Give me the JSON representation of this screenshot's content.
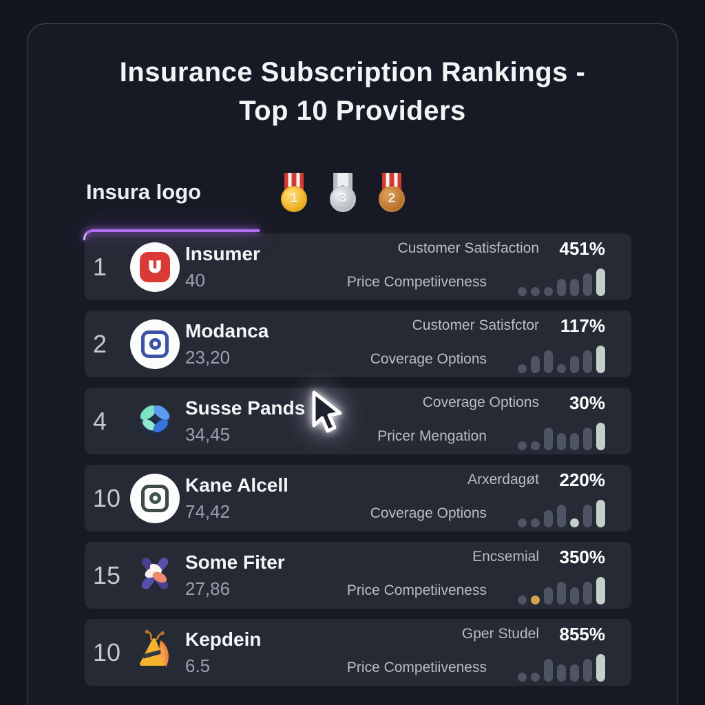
{
  "title": {
    "line1": "Insurance Subscription Rankings -",
    "line2": "Top 10 Providers"
  },
  "header": {
    "brand": "Insura logo",
    "medals": [
      {
        "rank": "1",
        "metal": "gold",
        "ribbon": "striped"
      },
      {
        "rank": "3",
        "metal": "silver",
        "ribbon": "silver"
      },
      {
        "rank": "2",
        "metal": "bronze",
        "ribbon": "striped"
      }
    ]
  },
  "colors": {
    "accent_line": "#b26ef0",
    "card_bg": "#262a34",
    "bar_grey": "#4e5463",
    "bar_light": "#c4cfcc",
    "bar_orange": "#d7a04e"
  },
  "rows": [
    {
      "rank": "1",
      "logo": "insumer-logo",
      "name": "Insumer",
      "score": "40",
      "metric1": {
        "label": "Customer Satisfaction",
        "value": "451%"
      },
      "metric2": {
        "label": "Price Competiiveness"
      },
      "bars": [
        {
          "h": 1,
          "c": "grey"
        },
        {
          "h": 1,
          "c": "grey"
        },
        {
          "h": 1,
          "c": "grey"
        },
        {
          "h": 2,
          "c": "grey"
        },
        {
          "h": 2,
          "c": "grey"
        },
        {
          "h": 3,
          "c": "grey"
        },
        {
          "h": 4,
          "c": "light"
        }
      ]
    },
    {
      "rank": "2",
      "logo": "modanca-logo",
      "name": "Modanca",
      "score": "23,20",
      "metric1": {
        "label": "Customer Satisfctor",
        "value": "117%"
      },
      "metric2": {
        "label": "Coverage Options"
      },
      "bars": [
        {
          "h": 1,
          "c": "grey"
        },
        {
          "h": 2,
          "c": "grey"
        },
        {
          "h": 3,
          "c": "grey"
        },
        {
          "h": 1,
          "c": "grey"
        },
        {
          "h": 2,
          "c": "grey"
        },
        {
          "h": 3,
          "c": "grey"
        },
        {
          "h": 4,
          "c": "light"
        }
      ]
    },
    {
      "rank": "4",
      "logo": "susse-pands-logo",
      "name": "Susse Pands",
      "score": "34,45",
      "metric1": {
        "label": "Coverage Options",
        "value": "30%"
      },
      "metric2": {
        "label": "Pricer Mengation"
      },
      "bars": [
        {
          "h": 1,
          "c": "grey"
        },
        {
          "h": 1,
          "c": "grey"
        },
        {
          "h": 3,
          "c": "grey"
        },
        {
          "h": 2,
          "c": "grey"
        },
        {
          "h": 2,
          "c": "grey"
        },
        {
          "h": 3,
          "c": "grey"
        },
        {
          "h": 4,
          "c": "light"
        }
      ]
    },
    {
      "rank": "10",
      "logo": "kane-alcell-logo",
      "name": "Kane Alcell",
      "score": "74,42",
      "metric1": {
        "label": "Arxerdagøt",
        "value": "220%"
      },
      "metric2": {
        "label": "Coverage Options"
      },
      "bars": [
        {
          "h": 1,
          "c": "grey"
        },
        {
          "h": 1,
          "c": "grey"
        },
        {
          "h": 2,
          "c": "grey"
        },
        {
          "h": 3,
          "c": "grey"
        },
        {
          "h": 1,
          "c": "light"
        },
        {
          "h": 3,
          "c": "grey"
        },
        {
          "h": 4,
          "c": "light"
        }
      ]
    },
    {
      "rank": "15",
      "logo": "some-fiter-logo",
      "name": "Some Fiter",
      "score": "27,86",
      "metric1": {
        "label": "Encsemial",
        "value": "350%"
      },
      "metric2": {
        "label": "Price Competiiveness"
      },
      "bars": [
        {
          "h": 1,
          "c": "grey"
        },
        {
          "h": 1,
          "c": "orange"
        },
        {
          "h": 2,
          "c": "grey"
        },
        {
          "h": 3,
          "c": "grey"
        },
        {
          "h": 2,
          "c": "grey"
        },
        {
          "h": 3,
          "c": "grey"
        },
        {
          "h": 4,
          "c": "light"
        }
      ]
    },
    {
      "rank": "10",
      "logo": "kepdein-logo",
      "name": "Kepdein",
      "score": "6.5",
      "metric1": {
        "label": "Gper Studel",
        "value": "855%"
      },
      "metric2": {
        "label": "Price Competiiveness"
      },
      "bars": [
        {
          "h": 1,
          "c": "grey"
        },
        {
          "h": 1,
          "c": "grey"
        },
        {
          "h": 3,
          "c": "grey"
        },
        {
          "h": 2,
          "c": "grey"
        },
        {
          "h": 2,
          "c": "grey"
        },
        {
          "h": 3,
          "c": "grey"
        },
        {
          "h": 4,
          "c": "light"
        }
      ]
    }
  ]
}
